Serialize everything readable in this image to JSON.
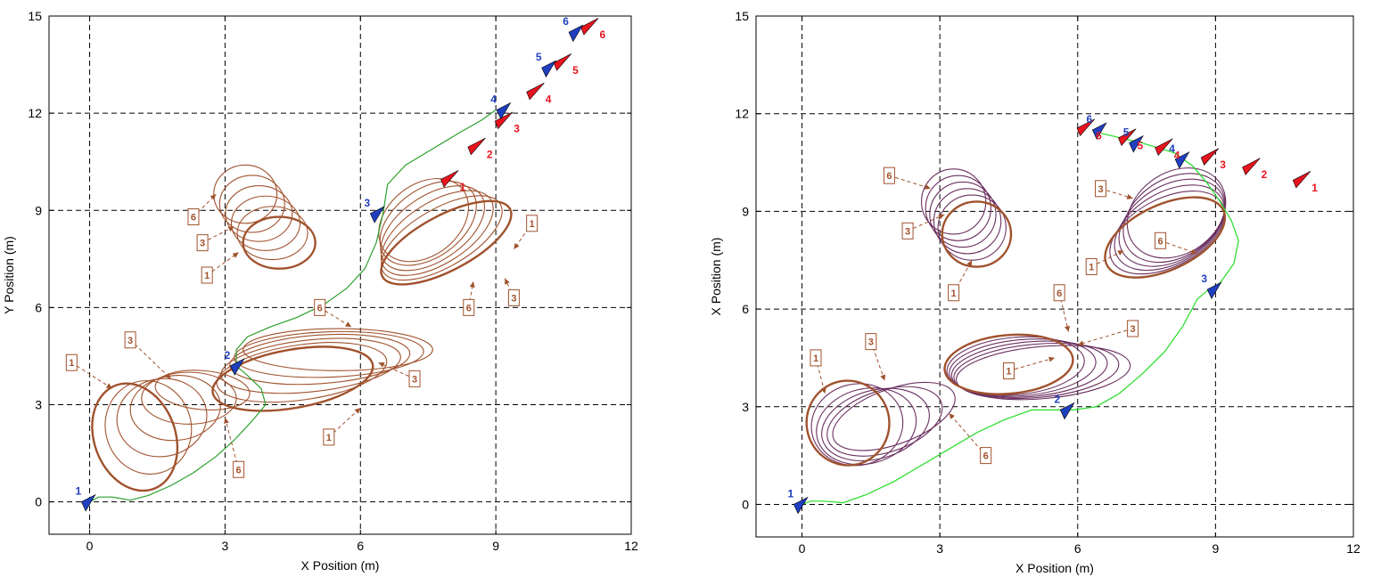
{
  "chart_data": [
    {
      "type": "line",
      "title": "",
      "xlabel": "X Position  (m)",
      "ylabel": "Y Position  (m)",
      "xlim": [
        -0.9,
        12
      ],
      "ylim": [
        -1,
        15
      ],
      "xticks": [
        0,
        3,
        6,
        9,
        12
      ],
      "yticks": [
        0,
        3,
        6,
        9,
        12,
        15
      ],
      "x_tick_labels": [
        "0",
        "3",
        "6",
        "9",
        "12"
      ],
      "y_tick_labels": [
        "0",
        "3",
        "6",
        "9",
        "12",
        "15"
      ],
      "grid": true,
      "grid_style": "dashed",
      "colors": {
        "obstacle": "#a0522d",
        "path": "#2ca02c",
        "vehicle": "#1f3fbf",
        "target": "#e8141e",
        "axis": "#000000"
      },
      "path": {
        "name": "",
        "x": [
          0,
          0.2,
          0.5,
          0.9,
          1.3,
          1.8,
          2.3,
          2.8,
          3.2,
          3.6,
          3.9,
          3.8,
          3.5,
          3.25,
          3.25,
          3.5,
          4.0,
          4.6,
          5.2,
          5.7,
          6.1,
          6.35,
          6.5,
          6.6,
          7.0,
          7.6,
          8.2,
          8.7,
          9.0
        ],
        "y": [
          0,
          0.15,
          0.15,
          0.05,
          0.2,
          0.5,
          0.9,
          1.4,
          1.9,
          2.5,
          3.0,
          3.5,
          3.9,
          4.2,
          4.7,
          5.1,
          5.4,
          5.7,
          6.1,
          6.6,
          7.2,
          8.0,
          8.9,
          9.8,
          10.4,
          10.9,
          11.4,
          11.8,
          12.1
        ]
      },
      "obstacles": [
        {
          "name": "obstacle-1",
          "cx": [
            1.0,
            1.3,
            1.6,
            1.9,
            2.2,
            2.5
          ],
          "cy": [
            2.0,
            2.3,
            2.6,
            2.9,
            3.2,
            3.45
          ],
          "rx": [
            0.9,
            0.95,
            1.0,
            1.0,
            1.05,
            1.05
          ],
          "ry": [
            1.7,
            1.45,
            1.2,
            1.0,
            0.8,
            0.6
          ],
          "rot": [
            -20,
            -15,
            -10,
            -5,
            0,
            5
          ]
        },
        {
          "name": "obstacle-2",
          "cx": [
            4.5,
            4.7,
            4.9,
            5.1,
            5.3,
            5.5
          ],
          "cy": [
            3.8,
            4.0,
            4.2,
            4.4,
            4.55,
            4.7
          ],
          "rx": [
            1.8,
            1.9,
            2.0,
            2.0,
            2.1,
            2.1
          ],
          "ry": [
            0.9,
            0.85,
            0.8,
            0.75,
            0.7,
            0.65
          ],
          "rot": [
            -10,
            -8,
            -6,
            -4,
            -2,
            0
          ]
        },
        {
          "name": "obstacle-3",
          "cx": [
            4.2,
            4.05,
            3.9,
            3.75,
            3.6,
            3.45
          ],
          "cy": [
            8.0,
            8.3,
            8.6,
            8.9,
            9.2,
            9.5
          ],
          "rx": [
            0.8,
            0.78,
            0.76,
            0.74,
            0.72,
            0.7
          ],
          "ry": [
            0.8,
            0.82,
            0.84,
            0.86,
            0.88,
            0.9
          ],
          "rot": [
            0,
            0,
            0,
            0,
            0,
            0
          ]
        },
        {
          "name": "obstacle-4",
          "cx": [
            7.9,
            7.8,
            7.7,
            7.6,
            7.5,
            7.4
          ],
          "cy": [
            8.0,
            8.15,
            8.3,
            8.45,
            8.6,
            8.7
          ],
          "rx": [
            1.6,
            1.5,
            1.4,
            1.3,
            1.2,
            1.1
          ],
          "ry": [
            0.85,
            0.9,
            0.95,
            1.0,
            1.05,
            1.1
          ],
          "rot": [
            -28,
            -30,
            -32,
            -34,
            -36,
            -38
          ]
        }
      ],
      "vehicle_markers": [
        {
          "label": "1",
          "x": 0,
          "y": 0
        },
        {
          "label": "2",
          "x": 3.3,
          "y": 4.2
        },
        {
          "label": "3",
          "x": 6.4,
          "y": 8.9
        },
        {
          "label": "4",
          "x": 9.2,
          "y": 12.1
        },
        {
          "label": "5",
          "x": 10.2,
          "y": 13.4
        },
        {
          "label": "6",
          "x": 10.8,
          "y": 14.5
        }
      ],
      "target_markers": [
        {
          "label": "1",
          "x": 8.0,
          "y": 10.0
        },
        {
          "label": "2",
          "x": 8.6,
          "y": 11.0
        },
        {
          "label": "3",
          "x": 9.2,
          "y": 11.8
        },
        {
          "label": "4",
          "x": 9.9,
          "y": 12.7
        },
        {
          "label": "5",
          "x": 10.5,
          "y": 13.6
        },
        {
          "label": "6",
          "x": 11.1,
          "y": 14.7
        }
      ],
      "annotations": [
        {
          "text": "1",
          "x": -0.4,
          "y": 4.3,
          "tx": 0.5,
          "ty": 3.5
        },
        {
          "text": "3",
          "x": 0.9,
          "y": 5.0,
          "tx": 1.8,
          "ty": 3.8
        },
        {
          "text": "6",
          "x": 3.3,
          "y": 1.0,
          "tx": 3.0,
          "ty": 2.6
        },
        {
          "text": "6",
          "x": 5.1,
          "y": 6.0,
          "tx": 5.8,
          "ty": 5.4
        },
        {
          "text": "3",
          "x": 7.2,
          "y": 3.8,
          "tx": 6.4,
          "ty": 4.3
        },
        {
          "text": "1",
          "x": 5.3,
          "y": 2.0,
          "tx": 6.0,
          "ty": 2.9
        },
        {
          "text": "6",
          "x": 2.3,
          "y": 8.8,
          "tx": 2.8,
          "ty": 9.5
        },
        {
          "text": "3",
          "x": 2.5,
          "y": 8.0,
          "tx": 3.2,
          "ty": 8.5
        },
        {
          "text": "1",
          "x": 2.6,
          "y": 7.0,
          "tx": 3.3,
          "ty": 7.7
        },
        {
          "text": "1",
          "x": 9.8,
          "y": 8.6,
          "tx": 9.4,
          "ty": 7.8
        },
        {
          "text": "3",
          "x": 9.4,
          "y": 6.3,
          "tx": 9.2,
          "ty": 6.9
        },
        {
          "text": "6",
          "x": 8.4,
          "y": 6.0,
          "tx": 8.5,
          "ty": 6.8
        }
      ]
    },
    {
      "type": "line",
      "title": "",
      "xlabel": "X Position  (m)",
      "ylabel": "X Position  (m)",
      "xlim": [
        -1,
        12
      ],
      "ylim": [
        -1,
        15
      ],
      "xticks": [
        0,
        3,
        6,
        9,
        12
      ],
      "yticks": [
        0,
        3,
        6,
        9,
        12,
        15
      ],
      "x_tick_labels": [
        "0",
        "3",
        "6",
        "9",
        "12"
      ],
      "y_tick_labels": [
        "0",
        "3",
        "6",
        "9",
        "12",
        "15"
      ],
      "grid": true,
      "grid_style": "dashed",
      "colors": {
        "obstacle": "#a0522d",
        "obstacle_history": "#6b3060",
        "path": "#22dd22",
        "vehicle": "#1f3fbf",
        "target": "#e8141e",
        "axis": "#000000"
      },
      "path": {
        "name": "",
        "x": [
          0,
          0.2,
          0.5,
          0.9,
          1.4,
          2.0,
          2.6,
          3.2,
          3.8,
          4.4,
          5.0,
          5.5,
          5.9,
          6.4,
          6.9,
          7.4,
          7.9,
          8.3,
          8.6,
          8.85,
          9.1,
          9.4,
          9.5,
          9.35,
          9.1,
          8.8,
          8.5,
          8.1,
          7.4,
          6.5
        ],
        "y": [
          0,
          0.1,
          0.1,
          0.05,
          0.3,
          0.7,
          1.2,
          1.7,
          2.2,
          2.6,
          2.9,
          2.9,
          2.9,
          3.0,
          3.4,
          4.0,
          4.7,
          5.5,
          6.3,
          6.6,
          6.8,
          7.4,
          8.1,
          8.7,
          9.3,
          9.9,
          10.4,
          10.8,
          11.1,
          11.4
        ]
      },
      "obstacles": [
        {
          "name": "obstacle-1",
          "cx": [
            1.0,
            1.2,
            1.4,
            1.6,
            1.8,
            2.0
          ],
          "cy": [
            2.5,
            2.45,
            2.4,
            2.45,
            2.55,
            2.7
          ],
          "rx": [
            0.9,
            1.0,
            1.1,
            1.2,
            1.3,
            1.4
          ],
          "ry": [
            1.3,
            1.25,
            1.15,
            1.05,
            0.95,
            0.85
          ],
          "rot": [
            -10,
            -12,
            -14,
            -16,
            -18,
            -20
          ]
        },
        {
          "name": "obstacle-2",
          "cx": [
            4.5,
            4.65,
            4.8,
            4.95,
            5.1,
            5.25
          ],
          "cy": [
            4.3,
            4.25,
            4.2,
            4.15,
            4.1,
            4.05
          ],
          "rx": [
            1.4,
            1.5,
            1.6,
            1.7,
            1.8,
            1.9
          ],
          "ry": [
            0.9,
            0.88,
            0.86,
            0.84,
            0.82,
            0.8
          ],
          "rot": [
            -5,
            -5,
            -5,
            -5,
            -5,
            -5
          ]
        },
        {
          "name": "obstacle-3",
          "cx": [
            3.8,
            3.7,
            3.6,
            3.5,
            3.4,
            3.3
          ],
          "cy": [
            8.3,
            8.5,
            8.7,
            8.9,
            9.1,
            9.3
          ],
          "rx": [
            0.75,
            0.74,
            0.73,
            0.72,
            0.71,
            0.7
          ],
          "ry": [
            1.0,
            1.0,
            1.0,
            1.0,
            1.0,
            1.0
          ],
          "rot": [
            0,
            0,
            0,
            0,
            0,
            0
          ]
        },
        {
          "name": "obstacle-4",
          "cx": [
            7.9,
            7.95,
            8.0,
            8.05,
            8.1,
            8.15
          ],
          "cy": [
            8.2,
            8.35,
            8.5,
            8.65,
            8.8,
            8.95
          ],
          "rx": [
            1.4,
            1.35,
            1.3,
            1.25,
            1.2,
            1.15
          ],
          "ry": [
            1.0,
            1.05,
            1.1,
            1.15,
            1.2,
            1.25
          ],
          "rot": [
            -25,
            -27,
            -29,
            -31,
            -33,
            -35
          ]
        }
      ],
      "vehicle_markers": [
        {
          "label": "1",
          "x": 0,
          "y": 0
        },
        {
          "label": "2",
          "x": 5.8,
          "y": 2.9
        },
        {
          "label": "3",
          "x": 9.0,
          "y": 6.6
        },
        {
          "label": "4",
          "x": 8.3,
          "y": 10.6
        },
        {
          "label": "5",
          "x": 7.3,
          "y": 11.1
        },
        {
          "label": "6",
          "x": 6.5,
          "y": 11.5
        }
      ],
      "target_markers": [
        {
          "label": "1",
          "x": 10.9,
          "y": 10.0
        },
        {
          "label": "2",
          "x": 9.8,
          "y": 10.4
        },
        {
          "label": "3",
          "x": 8.9,
          "y": 10.7
        },
        {
          "label": "4",
          "x": 7.9,
          "y": 11.0
        },
        {
          "label": "5",
          "x": 7.1,
          "y": 11.3
        },
        {
          "label": "6",
          "x": 6.2,
          "y": 11.6
        }
      ],
      "annotations": [
        {
          "text": "1",
          "x": 0.3,
          "y": 4.5,
          "tx": 0.5,
          "ty": 3.4
        },
        {
          "text": "3",
          "x": 1.5,
          "y": 5.0,
          "tx": 1.8,
          "ty": 3.8
        },
        {
          "text": "6",
          "x": 4.0,
          "y": 1.5,
          "tx": 3.2,
          "ty": 2.8
        },
        {
          "text": "6",
          "x": 5.6,
          "y": 6.5,
          "tx": 5.8,
          "ty": 5.3
        },
        {
          "text": "3",
          "x": 7.2,
          "y": 5.4,
          "tx": 6.0,
          "ty": 4.9
        },
        {
          "text": "1",
          "x": 4.5,
          "y": 4.1,
          "tx": 5.5,
          "ty": 4.5
        },
        {
          "text": "6",
          "x": 1.9,
          "y": 10.1,
          "tx": 2.8,
          "ty": 9.7
        },
        {
          "text": "3",
          "x": 2.3,
          "y": 8.4,
          "tx": 3.1,
          "ty": 8.9
        },
        {
          "text": "1",
          "x": 3.3,
          "y": 6.5,
          "tx": 3.7,
          "ty": 7.5
        },
        {
          "text": "3",
          "x": 6.5,
          "y": 9.7,
          "tx": 7.2,
          "ty": 9.4
        },
        {
          "text": "1",
          "x": 6.3,
          "y": 7.3,
          "tx": 7.0,
          "ty": 7.8
        },
        {
          "text": "6",
          "x": 7.8,
          "y": 8.1,
          "tx": 8.6,
          "ty": 7.7
        }
      ]
    }
  ]
}
